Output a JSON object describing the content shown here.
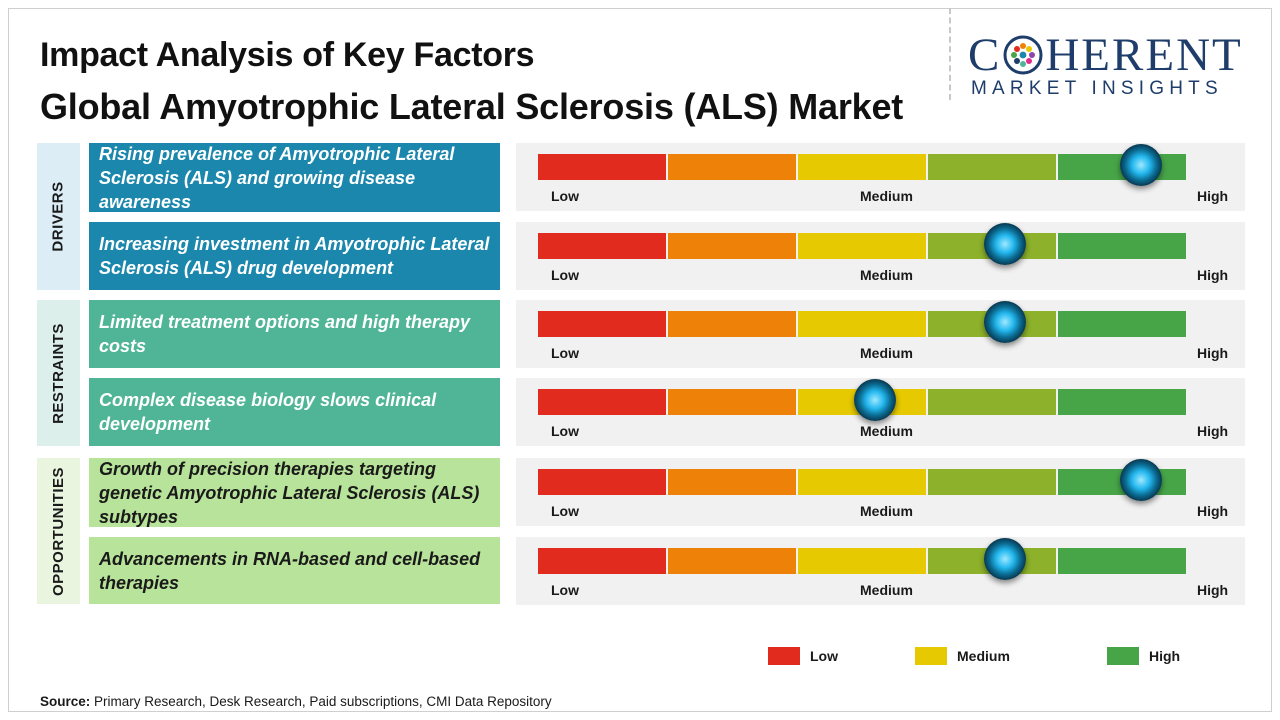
{
  "header": {
    "title": "Impact Analysis of Key Factors",
    "subtitle": "Global Amyotrophic Lateral Sclerosis (ALS) Market"
  },
  "logo": {
    "text_before": "C",
    "text_after": "HERENT",
    "sub": "MARKET INSIGHTS",
    "color": "#1f3d6b"
  },
  "categories": {
    "drivers": "DRIVERS",
    "restraints": "RESTRAINTS",
    "opportunities": "OPPORTUNITIES"
  },
  "scale": {
    "low": "Low",
    "medium": "Medium",
    "high": "High"
  },
  "chart_data": {
    "type": "table",
    "levels": [
      "Low",
      "Medium",
      "High"
    ],
    "scale_range": [
      0,
      1
    ],
    "rows": [
      {
        "category": "DRIVERS",
        "factor": "Rising prevalence of Amyotrophic Lateral Sclerosis (ALS) and growing disease awareness",
        "impact": 0.93
      },
      {
        "category": "DRIVERS",
        "factor": "Increasing investment in Amyotrophic Lateral Sclerosis (ALS) drug development",
        "impact": 0.72
      },
      {
        "category": "RESTRAINTS",
        "factor": "Limited treatment options and high therapy costs",
        "impact": 0.72
      },
      {
        "category": "RESTRAINTS",
        "factor": "Complex disease biology slows clinical development",
        "impact": 0.52
      },
      {
        "category": "OPPORTUNITIES",
        "factor": "Growth of precision therapies targeting genetic Amyotrophic Lateral Sclerosis (ALS) subtypes",
        "impact": 0.93
      },
      {
        "category": "OPPORTUNITIES",
        "factor": "Advancements in RNA-based and cell-based therapies",
        "impact": 0.72
      }
    ]
  },
  "legend": [
    {
      "label": "Low",
      "color": "#e12b1f"
    },
    {
      "label": "Medium",
      "color": "#e6c900"
    },
    {
      "label": "High",
      "color": "#47a548"
    }
  ],
  "colors": {
    "segments": [
      "#e12b1f",
      "#ee8209",
      "#e6c900",
      "#8db12a",
      "#47a548"
    ],
    "driver": "#1b87ad",
    "restraint": "#4fb596",
    "opportunity": "#b8e39a"
  },
  "source": {
    "label": "Source:",
    "text": " Primary Research, Desk Research, Paid subscriptions, CMI Data Repository"
  }
}
